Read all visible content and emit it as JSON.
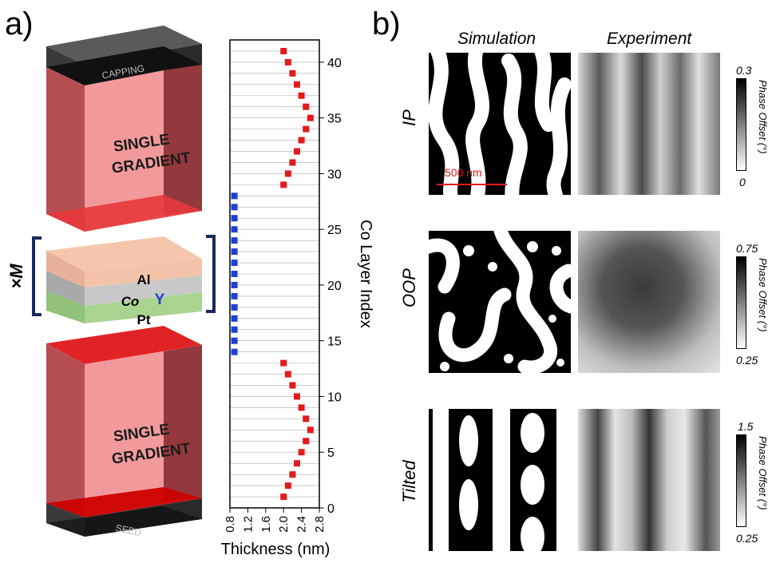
{
  "panel_a": {
    "label": "a)",
    "stack": {
      "capping": "CAPPING",
      "top_block": [
        "SINGLE",
        "GRADIENT"
      ],
      "bottom_block": [
        "SINGLE",
        "GRADIENT"
      ],
      "seed": "SEED",
      "repeat_label": "×M",
      "layers": {
        "al": "Al",
        "co": "Co",
        "y": "Y",
        "pt": "Pt"
      }
    }
  },
  "panel_b": {
    "label": "b)",
    "columns": [
      "Simulation",
      "Experiment"
    ],
    "rows": [
      {
        "label": "IP",
        "cb_max": "0.3",
        "cb_min": "0",
        "cb_title": "Phase Offset (°)"
      },
      {
        "label": "OOP",
        "cb_max": "0.75",
        "cb_min": "0.25",
        "cb_title": "Phase Offset (°)"
      },
      {
        "label": "Tilted",
        "cb_max": "1.5",
        "cb_min": "0.25",
        "cb_title": "Phase Offset (°)"
      }
    ],
    "scalebar": "500 nm"
  },
  "chart_data": {
    "type": "scatter",
    "xlabel": "Thickness (nm)",
    "ylabel": "Co Layer Index",
    "xlim": [
      0.8,
      2.8
    ],
    "ylim": [
      0,
      42
    ],
    "xticks": [
      "0.8",
      "1.2",
      "1.6",
      "2.0",
      "2.4",
      "2.8"
    ],
    "yticks": [
      "0",
      "5",
      "10",
      "15",
      "20",
      "25",
      "30",
      "35",
      "40"
    ],
    "grid": "horizontal lines at every integer index",
    "colors": {
      "gradient": "#e31a1c",
      "repeat": "#1f3fd6"
    },
    "series": [
      {
        "color": "#e31a1c",
        "x": [
          2.0,
          2.1,
          2.2,
          2.3,
          2.4,
          2.5,
          2.6,
          2.5,
          2.4,
          2.3,
          2.2,
          2.1,
          2.0
        ],
        "y": [
          1,
          2,
          3,
          4,
          5,
          6,
          7,
          8,
          9,
          10,
          11,
          12,
          13
        ]
      },
      {
        "color": "#1f3fd6",
        "x": [
          0.9,
          0.9,
          0.9,
          0.9,
          0.9,
          0.9,
          0.9,
          0.9,
          0.9,
          0.9,
          0.9,
          0.9,
          0.9,
          0.9,
          0.9
        ],
        "y": [
          14,
          15,
          16,
          17,
          18,
          19,
          20,
          21,
          22,
          23,
          24,
          25,
          26,
          27,
          28
        ]
      },
      {
        "color": "#e31a1c",
        "x": [
          2.0,
          2.1,
          2.2,
          2.3,
          2.4,
          2.5,
          2.6,
          2.5,
          2.4,
          2.3,
          2.2,
          2.1,
          2.0
        ],
        "y": [
          29,
          30,
          31,
          32,
          33,
          34,
          35,
          36,
          37,
          38,
          39,
          40,
          41
        ]
      }
    ]
  }
}
